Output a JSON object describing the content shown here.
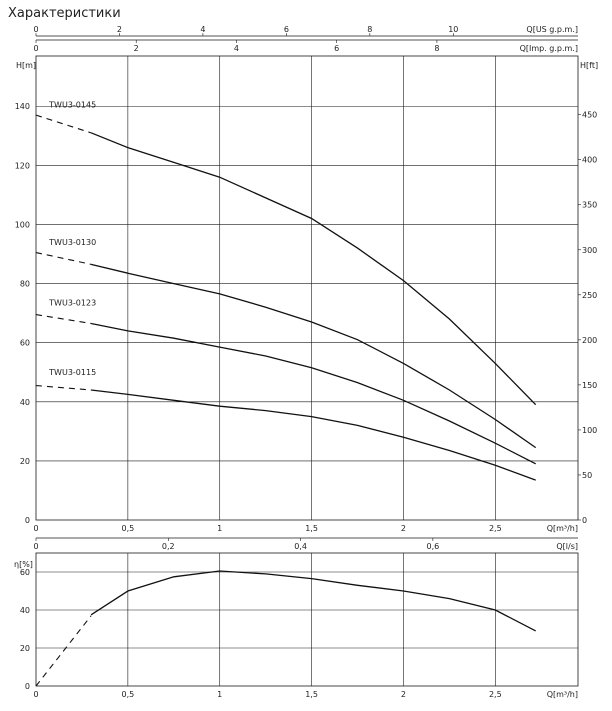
{
  "page_title": "Характеристики",
  "chart_data": [
    {
      "type": "line",
      "title": "",
      "xlabel": "Q[m³/h]",
      "ylabel": "H[m]",
      "ylabel_right": "H[ft]",
      "xlim": [
        0,
        2.95
      ],
      "ylim": [
        0,
        157
      ],
      "x_ticks": [
        0,
        0.5,
        1,
        1.5,
        2,
        2.5
      ],
      "x_tick_labels": [
        "0",
        "0,5",
        "1",
        "1,5",
        "2",
        "2,5"
      ],
      "y_ticks": [
        0,
        20,
        40,
        60,
        80,
        100,
        120,
        140
      ],
      "y_ticks_right_ft": [
        0,
        50,
        100,
        150,
        200,
        250,
        300,
        350,
        400,
        450
      ],
      "top_axis_usgpm": {
        "label": "Q[US g.p.m.]",
        "ticks": [
          0,
          2,
          4,
          6,
          8,
          10
        ]
      },
      "top_axis_impgpm": {
        "label": "Q[Imp. g.p.m.]",
        "ticks": [
          0,
          2,
          4,
          6,
          8
        ]
      },
      "grid": true,
      "series": [
        {
          "name": "TWU3-0145",
          "label_at": [
            0.05,
            138.5
          ],
          "dashed": {
            "x": [
              0,
              0.3
            ],
            "y": [
              137,
              131
            ]
          },
          "x": [
            0.3,
            0.5,
            0.75,
            1.0,
            1.25,
            1.5,
            1.75,
            2.0,
            2.25,
            2.5,
            2.72
          ],
          "y": [
            131,
            126,
            121,
            116,
            109,
            102,
            92,
            81,
            68,
            53,
            39
          ]
        },
        {
          "name": "TWU3-0130",
          "label_at": [
            0.05,
            92
          ],
          "dashed": {
            "x": [
              0,
              0.3
            ],
            "y": [
              90.5,
              86.5
            ]
          },
          "x": [
            0.3,
            0.5,
            0.75,
            1.0,
            1.25,
            1.5,
            1.75,
            2.0,
            2.25,
            2.5,
            2.72
          ],
          "y": [
            86.5,
            83.5,
            80,
            76.5,
            72,
            67,
            61,
            53,
            44,
            34,
            24.5
          ]
        },
        {
          "name": "TWU3-0123",
          "label_at": [
            0.05,
            71.5
          ],
          "dashed": {
            "x": [
              0,
              0.3
            ],
            "y": [
              69.5,
              66.5
            ]
          },
          "x": [
            0.3,
            0.5,
            0.75,
            1.0,
            1.25,
            1.5,
            1.75,
            2.0,
            2.25,
            2.5,
            2.72
          ],
          "y": [
            66.5,
            64,
            61.5,
            58.5,
            55.5,
            51.5,
            46.5,
            40.5,
            33.5,
            26,
            19
          ]
        },
        {
          "name": "TWU3-0115",
          "label_at": [
            0.05,
            48
          ],
          "dashed": {
            "x": [
              0,
              0.3
            ],
            "y": [
              45.5,
              44
            ]
          },
          "x": [
            0.3,
            0.5,
            0.75,
            1.0,
            1.25,
            1.5,
            1.75,
            2.0,
            2.25,
            2.5,
            2.72
          ],
          "y": [
            44,
            42.5,
            40.5,
            38.5,
            37,
            35,
            32,
            28,
            23.5,
            18.5,
            13.5
          ]
        }
      ]
    },
    {
      "type": "line",
      "title": "",
      "xlabel": "Q[m³/h]",
      "ylabel": "η[%]",
      "xlim": [
        0,
        2.95
      ],
      "ylim": [
        0,
        70
      ],
      "x_ticks": [
        0,
        0.5,
        1,
        1.5,
        2,
        2.5
      ],
      "x_tick_labels": [
        "0",
        "0,5",
        "1",
        "1,5",
        "2",
        "2,5"
      ],
      "y_ticks": [
        0,
        20,
        40,
        60
      ],
      "top_axis_ls": {
        "label": "Q[l/s]",
        "ticks": [
          0,
          0.2,
          0.4,
          0.6
        ],
        "tick_labels": [
          "0",
          "0,2",
          "0,4",
          "0,6"
        ]
      },
      "grid": true,
      "series": [
        {
          "name": "",
          "dashed": {
            "x": [
              0,
              0.3
            ],
            "y": [
              0,
              37
            ]
          },
          "x": [
            0.3,
            0.5,
            0.75,
            1.0,
            1.25,
            1.5,
            1.75,
            2.0,
            2.25,
            2.5,
            2.72
          ],
          "y": [
            37.5,
            50,
            57.5,
            60.5,
            59,
            56.5,
            53,
            50,
            46,
            40,
            29
          ]
        }
      ]
    }
  ]
}
